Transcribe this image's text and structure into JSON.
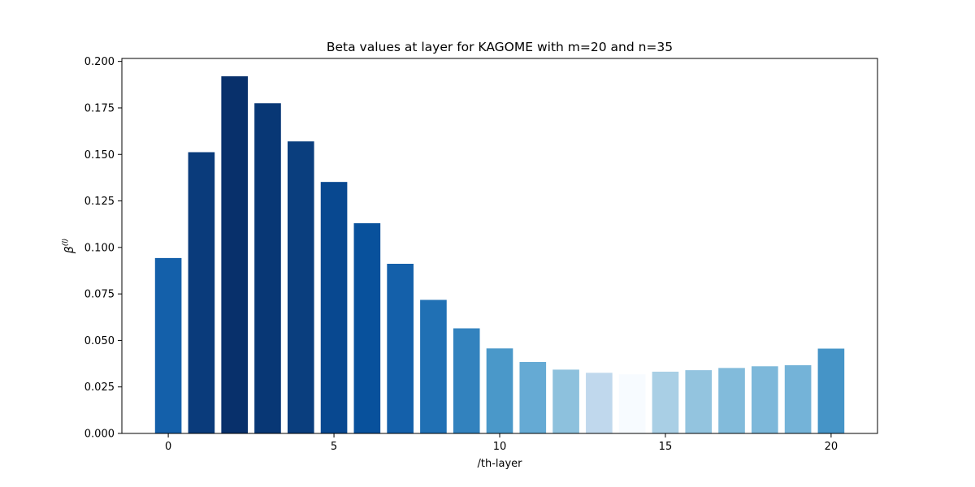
{
  "chart_data": {
    "type": "bar",
    "title": "Beta values at layer for KAGOME with m=20 and n=35",
    "xlabel": "/th-layer",
    "ylabel": "β(l)",
    "ylabel_base": "β",
    "ylabel_sup": "(l)",
    "x": [
      0,
      1,
      2,
      3,
      4,
      5,
      6,
      7,
      8,
      9,
      10,
      11,
      12,
      13,
      14,
      15,
      16,
      17,
      18,
      19,
      20
    ],
    "values": [
      0.0943,
      0.1512,
      0.192,
      0.1775,
      0.157,
      0.1352,
      0.113,
      0.0912,
      0.0718,
      0.0565,
      0.0457,
      0.0384,
      0.0343,
      0.0326,
      0.0318,
      0.0332,
      0.034,
      0.0352,
      0.0361,
      0.0367,
      0.0456
    ],
    "colors": [
      "#1460aa",
      "#0a3b7b",
      "#08306b",
      "#083775",
      "#0a3e7e",
      "#084890",
      "#08519c",
      "#1460aa",
      "#2070b4",
      "#3282be",
      "#4a98c9",
      "#65aad4",
      "#8dc1dd",
      "#c0d8ed",
      "#f7fbff",
      "#a9cfe5",
      "#93c4df",
      "#82bbdb",
      "#7db8da",
      "#74b3d8",
      "#4594c7"
    ],
    "xlim": [
      -1.4,
      21.4
    ],
    "ylim": [
      0,
      0.2016
    ],
    "xticks": [
      0,
      5,
      10,
      15,
      20
    ],
    "yticks": [
      0.0,
      0.025,
      0.05,
      0.075,
      0.1,
      0.125,
      0.15,
      0.175,
      0.2
    ],
    "xtick_labels": [
      "0",
      "5",
      "10",
      "15",
      "20"
    ],
    "ytick_labels": [
      "0.000",
      "0.025",
      "0.050",
      "0.075",
      "0.100",
      "0.125",
      "0.150",
      "0.175",
      "0.200"
    ],
    "bar_width": 0.8,
    "grid": false,
    "legend": "none"
  }
}
